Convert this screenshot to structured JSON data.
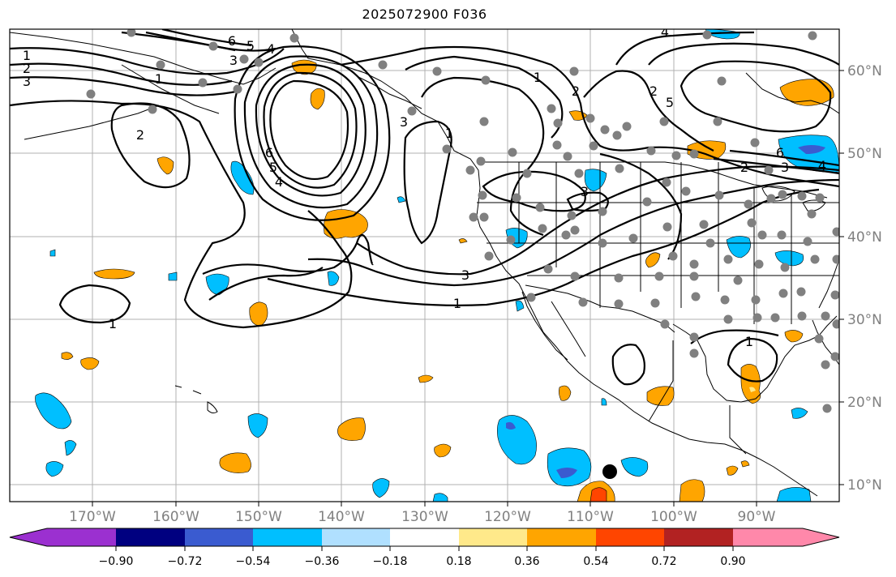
{
  "title": "2025072900 F036",
  "lon_labels": [
    "170°W",
    "160°W",
    "150°W",
    "140°W",
    "130°W",
    "120°W",
    "110°W",
    "100°W",
    "90°W"
  ],
  "lat_labels": [
    "60°N",
    "50°N",
    "40°N",
    "30°N",
    "20°N",
    "10°N"
  ],
  "colorbar": {
    "ticks": [
      "−0.90",
      "−0.72",
      "−0.54",
      "−0.36",
      "−0.18",
      "0.18",
      "0.36",
      "0.54",
      "0.72",
      "0.90"
    ],
    "colors": [
      "#9b30d0",
      "#000080",
      "#3a5bd0",
      "#00bfff",
      "#b0e0ff",
      "#ffffff",
      "#ffe98a",
      "#ffa500",
      "#ff4500",
      "#b22222",
      "#ff88aa"
    ]
  },
  "contour_labels": [
    "1",
    "2",
    "3",
    "6",
    "5",
    "4",
    "3",
    "1",
    "2",
    "6",
    "5",
    "4",
    "1",
    "2",
    "3",
    "1",
    "2",
    "5",
    "6",
    "2",
    "3",
    "4",
    "3",
    "3",
    "1",
    "1",
    "1",
    "4"
  ],
  "colors": {
    "land_outline": "#000000",
    "grid": "#b0b0b0",
    "station_dot": "#808080",
    "axis_label": "#808080"
  }
}
